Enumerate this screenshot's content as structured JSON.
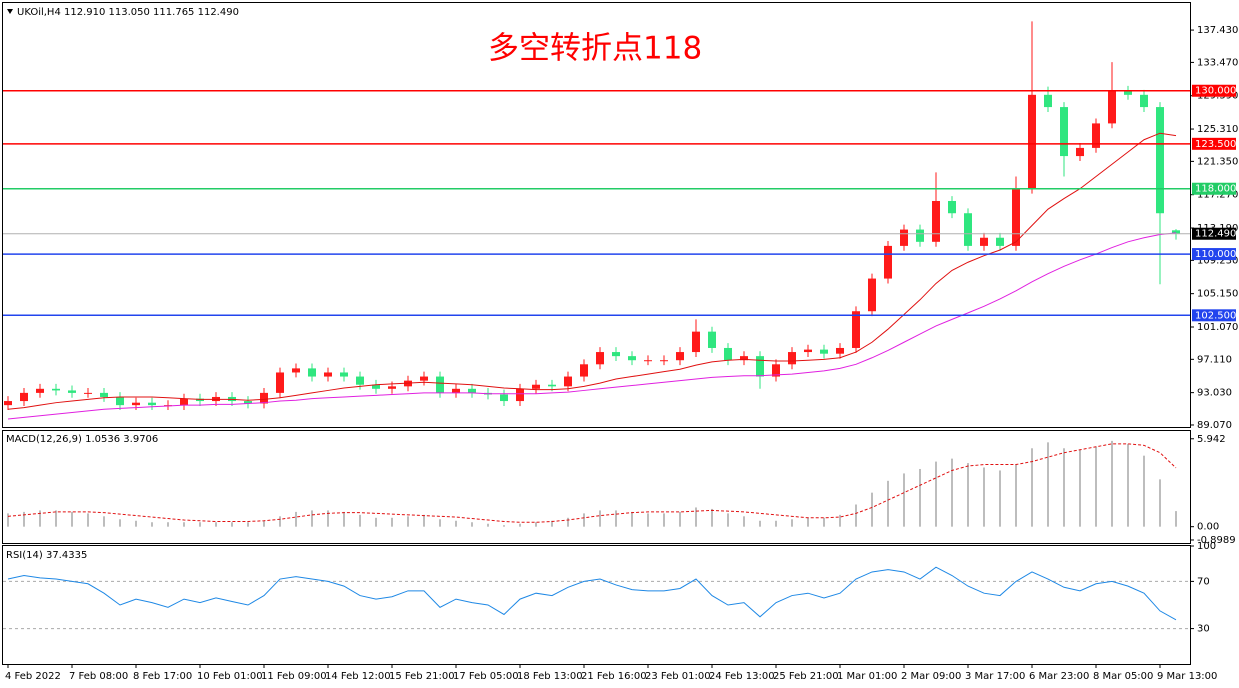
{
  "chart_data": [
    {
      "type": "candlestick",
      "title": "UKOil,H4  112.910 113.050 111.765 112.490",
      "annotation": "多空转折点118",
      "categories": [
        "4 Feb 2022",
        null,
        null,
        null,
        "7 Feb 08:00",
        null,
        null,
        null,
        "8 Feb 17:00",
        null,
        null,
        null,
        "10 Feb 01:00",
        null,
        null,
        null,
        "11 Feb 09:00",
        null,
        null,
        null,
        "14 Feb 12:00",
        null,
        null,
        null,
        "15 Feb 21:00",
        null,
        null,
        null,
        "17 Feb 05:00",
        null,
        null,
        null,
        "18 Feb 13:00",
        null,
        null,
        null,
        "21 Feb 16:00",
        null,
        null,
        null,
        "23 Feb 01:00",
        null,
        null,
        null,
        "24 Feb 13:00",
        null,
        null,
        null,
        "25 Feb 21:00",
        null,
        null,
        null,
        "1 Mar 01:00",
        null,
        null,
        null,
        "2 Mar 09:00",
        null,
        null,
        null,
        "3 Mar 17:00",
        null,
        null,
        null,
        "6 Mar 23:00",
        null,
        null,
        null,
        "8 Mar 05:00",
        null,
        null,
        null,
        "9 Mar 13:00",
        null
      ],
      "open": [
        91.5,
        92,
        93,
        93.5,
        93.3,
        93,
        93,
        92.5,
        91.5,
        91.8,
        91.5,
        91.5,
        92.3,
        92,
        92.5,
        92,
        91.7,
        93,
        95.5,
        96,
        95,
        95.5,
        95,
        94,
        93.5,
        93.8,
        94.5,
        95,
        93,
        93.5,
        93,
        92.8,
        92,
        93.5,
        94,
        93.8,
        95,
        96.5,
        98,
        97.5,
        97,
        97,
        97,
        98,
        100.5,
        98.5,
        97,
        97.5,
        95,
        96.5,
        98,
        98.3,
        97.8,
        98.5,
        103,
        107,
        111,
        113,
        111.5,
        116.5,
        115,
        111,
        112,
        111,
        118,
        129.5,
        128,
        122,
        123,
        126,
        130,
        129.5,
        128,
        112.91
      ],
      "high": [
        92.6,
        93.6,
        94.1,
        94.1,
        93.9,
        93.6,
        93.6,
        93.1,
        92.4,
        92.4,
        92.1,
        92.9,
        92.9,
        93.1,
        93.1,
        92.6,
        93.6,
        96.1,
        96.6,
        96.6,
        96.1,
        96.1,
        95.6,
        94.6,
        94.4,
        95.1,
        95.6,
        95.6,
        94.1,
        94.1,
        93.6,
        93.4,
        94.1,
        94.6,
        94.6,
        95.6,
        97.1,
        98.6,
        98.6,
        98.1,
        97.6,
        97.6,
        98.6,
        102,
        101.1,
        99.1,
        98.1,
        98.1,
        97.1,
        98.6,
        98.9,
        98.9,
        99.1,
        103.6,
        107.6,
        111.6,
        113.6,
        113.6,
        120,
        117.1,
        115.6,
        112.6,
        112.6,
        119.5,
        138.5,
        130.5,
        128.6,
        123.6,
        126.6,
        133.5,
        130.6,
        130.1,
        128.6,
        113.05
      ],
      "low": [
        90.9,
        91.4,
        92.4,
        92.7,
        92.4,
        92.4,
        91.9,
        90.9,
        90.9,
        90.9,
        90.9,
        90.9,
        91.4,
        91.4,
        91.4,
        91.1,
        91.1,
        92.4,
        94.9,
        94.4,
        94.4,
        94.4,
        93.4,
        92.9,
        92.9,
        93.2,
        93.9,
        92.4,
        92.4,
        92.4,
        92.2,
        91.4,
        91.4,
        92.9,
        93.2,
        93.2,
        94.4,
        95.9,
        96.9,
        96.4,
        96.4,
        96.4,
        96.4,
        97.4,
        97.9,
        96.4,
        96.4,
        93.5,
        94.4,
        95.9,
        97.4,
        97.2,
        97.2,
        97.9,
        102.4,
        106.4,
        110.4,
        110.9,
        110.9,
        114.4,
        110.4,
        110.4,
        110.4,
        110.4,
        117.4,
        127.4,
        119.5,
        121.4,
        122.4,
        125.4,
        128.9,
        127.4,
        106.3,
        111.765
      ],
      "close": [
        92,
        93,
        93.5,
        93.3,
        93,
        93,
        92.5,
        91.5,
        91.8,
        91.5,
        91.5,
        92.3,
        92,
        92.5,
        92,
        91.7,
        93,
        95.5,
        96,
        95,
        95.5,
        95,
        94,
        93.5,
        93.8,
        94.5,
        95,
        93,
        93.5,
        93,
        92.8,
        92,
        93.5,
        94,
        93.8,
        95,
        96.5,
        98,
        97.5,
        97,
        97,
        97,
        98,
        100.5,
        98.5,
        97,
        97.5,
        95,
        96.5,
        98,
        98.3,
        97.8,
        98.5,
        103,
        107,
        111,
        113,
        111.5,
        116.5,
        115,
        111,
        112,
        111,
        118,
        129.5,
        128,
        122,
        123,
        126,
        130,
        129.5,
        128,
        115,
        112.49
      ],
      "up_color": "#ff1a1a",
      "down_color": "#2fe67f",
      "series": [
        {
          "color": "#e01010",
          "values": [
            91.0,
            91.2,
            91.5,
            91.8,
            92.0,
            92.2,
            92.4,
            92.5,
            92.5,
            92.5,
            92.4,
            92.3,
            92.2,
            92.2,
            92.2,
            92.1,
            92.2,
            92.4,
            92.7,
            93.0,
            93.3,
            93.6,
            93.8,
            94.0,
            94.1,
            94.2,
            94.3,
            94.2,
            94.1,
            94.0,
            93.8,
            93.6,
            93.5,
            93.4,
            93.4,
            93.5,
            93.8,
            94.2,
            94.7,
            95.0,
            95.3,
            95.6,
            95.9,
            96.4,
            96.8,
            97.0,
            97.1,
            97.0,
            96.9,
            96.9,
            97.0,
            97.1,
            97.3,
            98.0,
            99.2,
            100.8,
            102.6,
            104.4,
            106.4,
            108.0,
            109.0,
            109.8,
            110.5,
            111.5,
            113.5,
            115.5,
            116.8,
            118.0,
            119.5,
            121.0,
            122.5,
            124.0,
            124.8,
            124.5
          ]
        },
        {
          "color": "#e020e0",
          "values": [
            89.8,
            90.0,
            90.2,
            90.4,
            90.6,
            90.8,
            91.0,
            91.1,
            91.2,
            91.3,
            91.4,
            91.5,
            91.5,
            91.6,
            91.6,
            91.7,
            91.8,
            92.0,
            92.1,
            92.3,
            92.4,
            92.5,
            92.6,
            92.7,
            92.8,
            92.9,
            93.0,
            93.0,
            93.0,
            93.0,
            92.9,
            92.9,
            92.9,
            92.9,
            93.0,
            93.1,
            93.3,
            93.5,
            93.7,
            93.9,
            94.1,
            94.3,
            94.5,
            94.7,
            94.9,
            95.0,
            95.1,
            95.1,
            95.2,
            95.3,
            95.5,
            95.7,
            96.0,
            96.5,
            97.3,
            98.2,
            99.2,
            100.2,
            101.2,
            102.0,
            102.8,
            103.6,
            104.5,
            105.5,
            106.6,
            107.6,
            108.5,
            109.3,
            110.0,
            110.8,
            111.5,
            112.0,
            112.4,
            112.6
          ]
        }
      ],
      "levels": [
        {
          "value": 130,
          "label": "130.000",
          "color": "#ff0000"
        },
        {
          "value": 123.5,
          "label": "123.500",
          "color": "#ff0000"
        },
        {
          "value": 118,
          "label": "118.000",
          "color": "#22cc66"
        },
        {
          "value": 110,
          "label": "110.000",
          "color": "#2244ee"
        },
        {
          "value": 102.5,
          "label": "102.500",
          "color": "#2244ee"
        }
      ],
      "current": {
        "value": 112.49,
        "label": "112.490",
        "color": "#000000"
      },
      "ylim": [
        88.7,
        140.5
      ],
      "yticks": [
        {
          "value": 137.43,
          "label": "137.430"
        },
        {
          "value": 133.47,
          "label": "133.470"
        },
        {
          "value": 129.39,
          "label": "129.390"
        },
        {
          "value": 125.31,
          "label": "125.310"
        },
        {
          "value": 121.35,
          "label": "121.350"
        },
        {
          "value": 117.27,
          "label": "117.270"
        },
        {
          "value": 113.19,
          "label": "113.190"
        },
        {
          "value": 109.23,
          "label": "109.230"
        },
        {
          "value": 105.15,
          "label": "105.150"
        },
        {
          "value": 101.07,
          "label": "101.070"
        },
        {
          "value": 97.11,
          "label": "97.110"
        },
        {
          "value": 93.03,
          "label": "93.030"
        },
        {
          "value": 89.07,
          "label": "89.070"
        }
      ]
    },
    {
      "type": "macd",
      "title": "MACD(12,26,9) 1.0536 3.9706",
      "values": [
        0.9,
        1.0,
        1.1,
        1.1,
        1.0,
        0.9,
        0.7,
        0.5,
        0.4,
        0.3,
        0.3,
        0.3,
        0.3,
        0.3,
        0.3,
        0.3,
        0.4,
        0.7,
        1.0,
        1.1,
        1.1,
        1.0,
        0.8,
        0.6,
        0.6,
        0.7,
        0.8,
        0.5,
        0.4,
        0.3,
        0.2,
        0.1,
        0.2,
        0.3,
        0.4,
        0.6,
        0.9,
        1.1,
        1.1,
        1.0,
        0.9,
        0.9,
        1.0,
        1.3,
        1.2,
        0.9,
        0.7,
        0.4,
        0.4,
        0.5,
        0.6,
        0.6,
        0.8,
        1.5,
        2.3,
        3.1,
        3.6,
        3.9,
        4.4,
        4.6,
        4.3,
        4.0,
        3.8,
        4.2,
        5.3,
        5.7,
        5.3,
        5.2,
        5.4,
        5.8,
        5.6,
        4.8,
        3.2,
        1.0536
      ],
      "color": "#bdbdbd",
      "signal": {
        "color": "#e01010",
        "values": [
          0.7,
          0.8,
          0.9,
          1.0,
          1.0,
          1.0,
          0.95,
          0.85,
          0.75,
          0.65,
          0.55,
          0.45,
          0.4,
          0.35,
          0.35,
          0.35,
          0.4,
          0.5,
          0.65,
          0.8,
          0.9,
          0.95,
          0.95,
          0.9,
          0.85,
          0.8,
          0.75,
          0.7,
          0.65,
          0.55,
          0.45,
          0.35,
          0.3,
          0.3,
          0.35,
          0.45,
          0.6,
          0.75,
          0.85,
          0.95,
          1.0,
          1.0,
          1.0,
          1.05,
          1.1,
          1.05,
          1.0,
          0.9,
          0.8,
          0.7,
          0.6,
          0.6,
          0.65,
          0.9,
          1.3,
          1.8,
          2.3,
          2.8,
          3.3,
          3.8,
          4.1,
          4.2,
          4.2,
          4.2,
          4.4,
          4.7,
          5.0,
          5.2,
          5.4,
          5.6,
          5.6,
          5.5,
          5.0,
          3.9706
        ]
      },
      "ylim": [
        -0.9,
        6.4
      ],
      "yticks": [
        {
          "value": 5.942,
          "label": "5.942"
        },
        {
          "value": 0,
          "label": "0.00"
        },
        {
          "value": -0.8989,
          "label": "-0.8989"
        }
      ]
    },
    {
      "type": "line",
      "title": "RSI(14) 37.4335",
      "series": [
        {
          "color": "#1e88e5",
          "values": [
            72,
            75,
            73,
            72,
            70,
            68,
            60,
            50,
            55,
            52,
            48,
            55,
            52,
            56,
            53,
            50,
            58,
            72,
            74,
            72,
            70,
            66,
            58,
            55,
            57,
            62,
            62,
            48,
            55,
            52,
            50,
            42,
            55,
            60,
            58,
            65,
            70,
            72,
            67,
            63,
            62,
            62,
            64,
            72,
            58,
            50,
            52,
            40,
            52,
            58,
            60,
            56,
            60,
            72,
            78,
            80,
            78,
            72,
            82,
            75,
            66,
            60,
            58,
            70,
            78,
            72,
            65,
            62,
            68,
            70,
            66,
            60,
            45,
            37.4335
          ]
        }
      ],
      "ylim": [
        0,
        100
      ],
      "yticks": [
        100,
        70,
        30
      ],
      "grid": true
    }
  ]
}
